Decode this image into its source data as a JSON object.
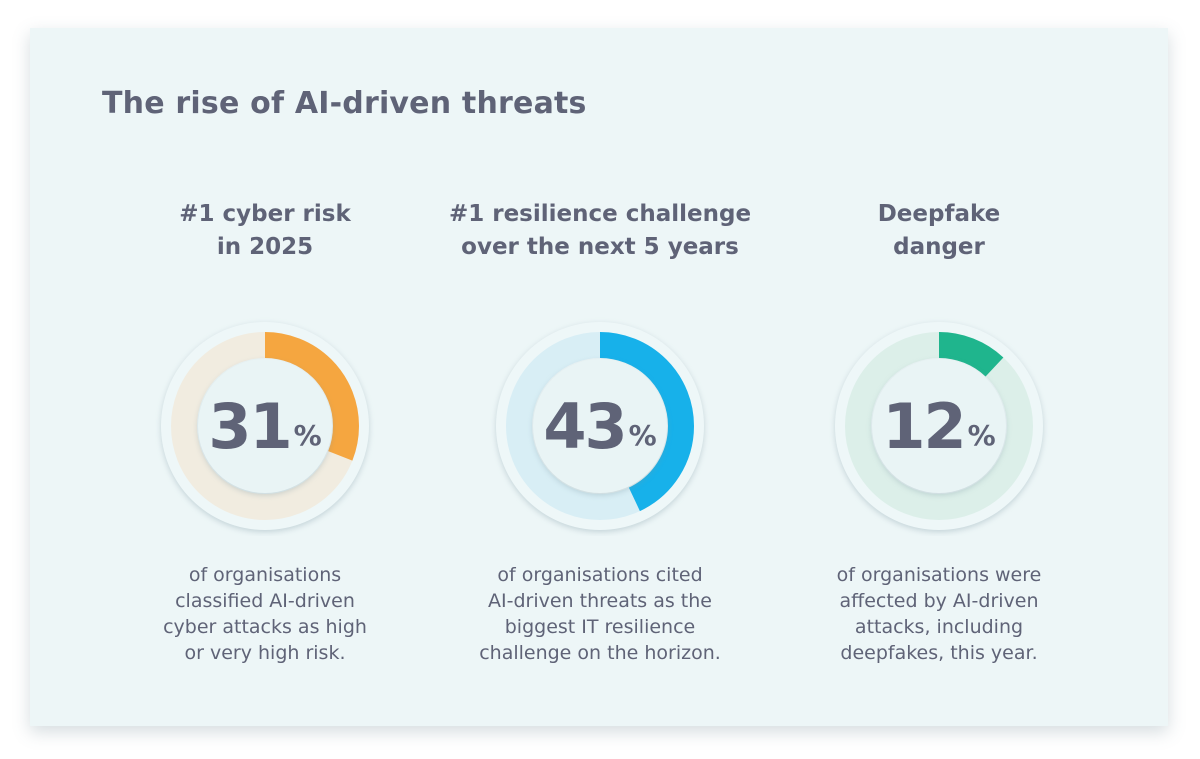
{
  "title": "The rise of AI-driven threats",
  "chart_data": [
    {
      "type": "pie",
      "title_lines": [
        "#1 cyber risk",
        "in 2025"
      ],
      "value": 31,
      "unit": "%",
      "color": "#f5a640",
      "track_color": "#f1ece0",
      "description_lines": [
        "of organisations",
        "classified AI-driven",
        "cyber attacks as high",
        "or very high risk."
      ]
    },
    {
      "type": "pie",
      "title_lines": [
        "#1 resilience challenge",
        "over the next 5 years"
      ],
      "value": 43,
      "unit": "%",
      "color": "#17b1ea",
      "track_color": "#d8eef5",
      "description_lines": [
        "of organisations cited",
        "AI-driven threats as the",
        "biggest IT resilience",
        "challenge on the horizon."
      ]
    },
    {
      "type": "pie",
      "title_lines": [
        "Deepfake",
        "danger"
      ],
      "value": 12,
      "unit": "%",
      "color": "#1fb58d",
      "track_color": "#dcefe9",
      "description_lines": [
        "of organisations were",
        "affected by AI-driven",
        "attacks, including",
        "deepfakes, this year."
      ]
    }
  ]
}
